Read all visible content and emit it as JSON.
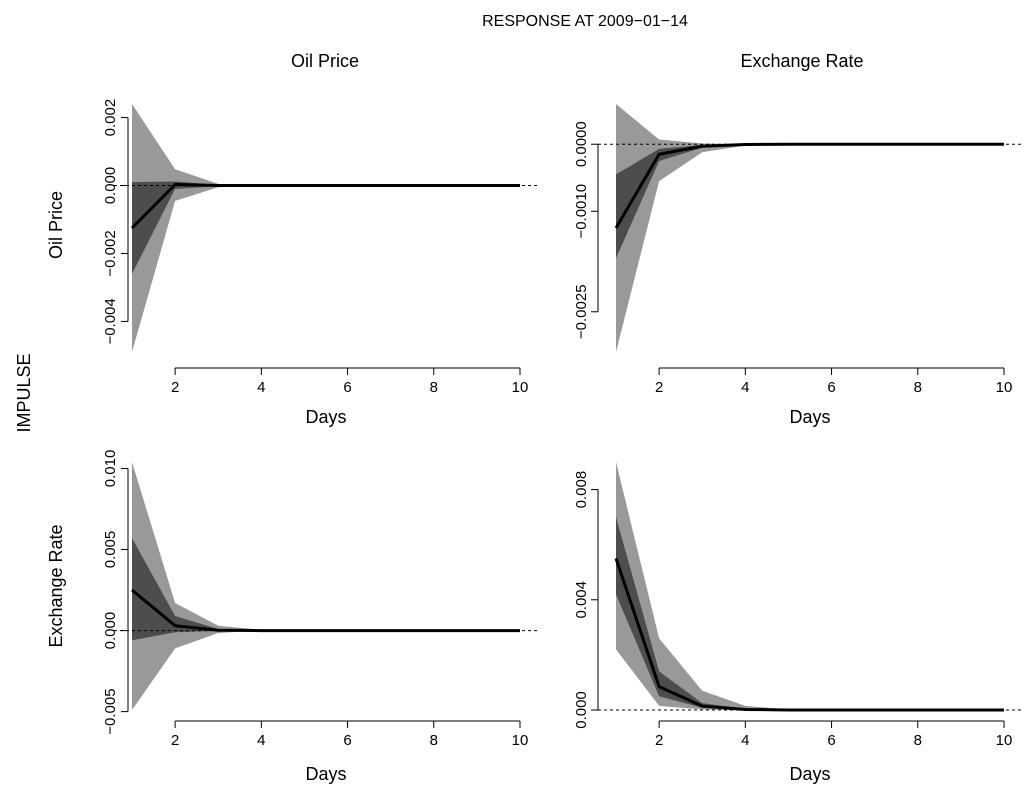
{
  "figure": {
    "main_title": "RESPONSE AT 2009−01−14",
    "row_label": "IMPULSE"
  },
  "colors": {
    "outer_band": "#999999",
    "inner_band": "#4d4d4d",
    "line": "#000000"
  },
  "chart_data": [
    {
      "type": "area",
      "impulse": "Oil Price",
      "response": "Oil Price",
      "col_title": "Oil Price",
      "row_title": "Oil Price",
      "xlabel": "Days",
      "xlim": [
        1,
        10
      ],
      "xticks": [
        2,
        4,
        6,
        8,
        10
      ],
      "ylim": [
        -0.0049,
        0.0024
      ],
      "yticks": [
        -0.004,
        -0.002,
        0.0,
        0.002
      ],
      "ytick_labels": [
        "−0.004",
        "−0.002",
        "0.000",
        "0.002"
      ],
      "x": [
        1,
        2,
        3,
        4,
        5,
        6,
        7,
        8,
        9,
        10
      ],
      "response_values": [
        -0.00125,
        3e-05,
        0.0,
        0.0,
        0.0,
        0.0,
        0.0,
        0.0,
        0.0,
        0.0
      ],
      "inner_lower": [
        -0.0026,
        -0.0001,
        -2e-05,
        0.0,
        0.0,
        0.0,
        0.0,
        0.0,
        0.0,
        0.0
      ],
      "inner_upper": [
        0.0001,
        0.00012,
        2e-05,
        0.0,
        0.0,
        0.0,
        0.0,
        0.0,
        0.0,
        0.0
      ],
      "outer_lower": [
        -0.0049,
        -0.00045,
        -5e-05,
        0.0,
        0.0,
        0.0,
        0.0,
        0.0,
        0.0,
        0.0
      ],
      "outer_upper": [
        0.0024,
        0.00048,
        5e-05,
        0.0,
        0.0,
        0.0,
        0.0,
        0.0,
        0.0,
        0.0
      ]
    },
    {
      "type": "area",
      "impulse": "Oil Price",
      "response": "Exchange Rate",
      "col_title": "Exchange Rate",
      "row_title": "",
      "xlabel": "Days",
      "xlim": [
        1,
        10
      ],
      "xticks": [
        2,
        4,
        6,
        8,
        10
      ],
      "ylim": [
        -0.0031,
        0.0006
      ],
      "yticks": [
        -0.0025,
        -0.001,
        0.0
      ],
      "ytick_labels": [
        "−0.0025",
        "−0.0010",
        "0.0000"
      ],
      "x": [
        1,
        2,
        3,
        4,
        5,
        6,
        7,
        8,
        9,
        10
      ],
      "response_values": [
        -0.00125,
        -0.00015,
        -3e-05,
        -5e-06,
        0.0,
        0.0,
        0.0,
        0.0,
        0.0,
        0.0
      ],
      "inner_lower": [
        -0.0017,
        -0.00025,
        -5e-05,
        -1e-05,
        0.0,
        0.0,
        0.0,
        0.0,
        0.0,
        0.0
      ],
      "inner_upper": [
        -0.00045,
        -7e-05,
        -1e-05,
        0.0,
        0.0,
        0.0,
        0.0,
        0.0,
        0.0,
        0.0
      ],
      "outer_lower": [
        -0.0031,
        -0.00055,
        -0.00012,
        -2e-05,
        0.0,
        0.0,
        0.0,
        0.0,
        0.0,
        0.0
      ],
      "outer_upper": [
        0.0006,
        7e-05,
        1e-05,
        0.0,
        0.0,
        0.0,
        0.0,
        0.0,
        0.0,
        0.0
      ]
    },
    {
      "type": "area",
      "impulse": "Exchange Rate",
      "response": "Oil Price",
      "col_title": "",
      "row_title": "Exchange Rate",
      "xlabel": "Days",
      "xlim": [
        1,
        10
      ],
      "xticks": [
        2,
        4,
        6,
        8,
        10
      ],
      "ylim": [
        -0.0049,
        0.0104
      ],
      "yticks": [
        -0.005,
        0.0,
        0.005,
        0.01
      ],
      "ytick_labels": [
        "−0.005",
        "0.000",
        "0.005",
        "0.010"
      ],
      "x": [
        1,
        2,
        3,
        4,
        5,
        6,
        7,
        8,
        9,
        10
      ],
      "response_values": [
        0.0025,
        0.0003,
        2e-05,
        0.0,
        0.0,
        0.0,
        0.0,
        0.0,
        0.0,
        0.0
      ],
      "inner_lower": [
        -0.0006,
        -0.0001,
        -2e-05,
        0.0,
        0.0,
        0.0,
        0.0,
        0.0,
        0.0,
        0.0
      ],
      "inner_upper": [
        0.0057,
        0.0009,
        0.0001,
        0.0,
        0.0,
        0.0,
        0.0,
        0.0,
        0.0,
        0.0
      ],
      "outer_lower": [
        -0.0049,
        -0.0011,
        -0.00015,
        0.0,
        0.0,
        0.0,
        0.0,
        0.0,
        0.0,
        0.0
      ],
      "outer_upper": [
        0.0104,
        0.0017,
        0.0003,
        4e-05,
        0.0,
        0.0,
        0.0,
        0.0,
        0.0,
        0.0
      ]
    },
    {
      "type": "area",
      "impulse": "Exchange Rate",
      "response": "Exchange Rate",
      "col_title": "",
      "row_title": "",
      "xlabel": "Days",
      "xlim": [
        1,
        10
      ],
      "xticks": [
        2,
        4,
        6,
        8,
        10
      ],
      "ylim": [
        0.0,
        0.009
      ],
      "yticks": [
        0.0,
        0.004,
        0.008
      ],
      "ytick_labels": [
        "0.000",
        "0.004",
        "0.008"
      ],
      "x": [
        1,
        2,
        3,
        4,
        5,
        6,
        7,
        8,
        9,
        10
      ],
      "response_values": [
        0.0055,
        0.00085,
        0.00014,
        2e-05,
        0.0,
        0.0,
        0.0,
        0.0,
        0.0,
        0.0
      ],
      "inner_lower": [
        0.0042,
        0.0005,
        8e-05,
        1e-05,
        0.0,
        0.0,
        0.0,
        0.0,
        0.0,
        0.0
      ],
      "inner_upper": [
        0.007,
        0.0014,
        0.00025,
        4e-05,
        0.0,
        0.0,
        0.0,
        0.0,
        0.0,
        0.0
      ],
      "outer_lower": [
        0.0022,
        0.00015,
        2e-05,
        0.0,
        0.0,
        0.0,
        0.0,
        0.0,
        0.0,
        0.0
      ],
      "outer_upper": [
        0.009,
        0.0026,
        0.0007,
        0.00015,
        2e-05,
        0.0,
        0.0,
        0.0,
        0.0,
        0.0
      ]
    }
  ]
}
